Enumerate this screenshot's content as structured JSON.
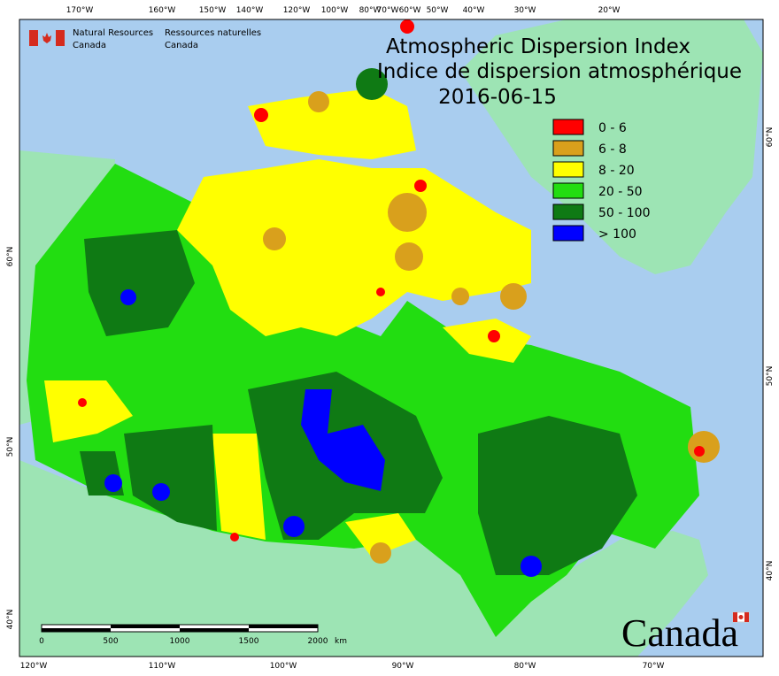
{
  "header": {
    "agency_en": [
      "Natural Resources",
      "Canada"
    ],
    "agency_fr": [
      "Ressources naturelles",
      "Canada"
    ]
  },
  "title": {
    "line1": "Atmospheric Dispersion Index",
    "line2": "Indice de dispersion atmosphérique",
    "date": "2016-06-15"
  },
  "legend": [
    {
      "label": "0 - 6",
      "color": "#ff0000"
    },
    {
      "label": "6 - 8",
      "color": "#d9a01c"
    },
    {
      "label": "8 - 20",
      "color": "#ffff00"
    },
    {
      "label": "20 - 50",
      "color": "#22dd11"
    },
    {
      "label": "50 - 100",
      "color": "#0f7a14"
    },
    {
      "label": "> 100",
      "color": "#0000ff"
    }
  ],
  "top_axis": [
    "170°W",
    "160°W",
    "150°W",
    "140°W",
    "120°W",
    "100°W",
    "80°W",
    "70°W",
    "60°W",
    "50°W",
    "40°W",
    "30°W",
    "20°W"
  ],
  "bottom_axis": [
    "120°W",
    "110°W",
    "100°W",
    "90°W",
    "80°W",
    "70°W"
  ],
  "left_axis": [
    "60°N",
    "50°N",
    "40°N"
  ],
  "right_axis": [
    "60°N",
    "50°N",
    "40°N"
  ],
  "scale_bar": {
    "ticks": [
      "0",
      "500",
      "1000",
      "1500",
      "2000"
    ],
    "unit": "km"
  },
  "wordmark": "Canada"
}
